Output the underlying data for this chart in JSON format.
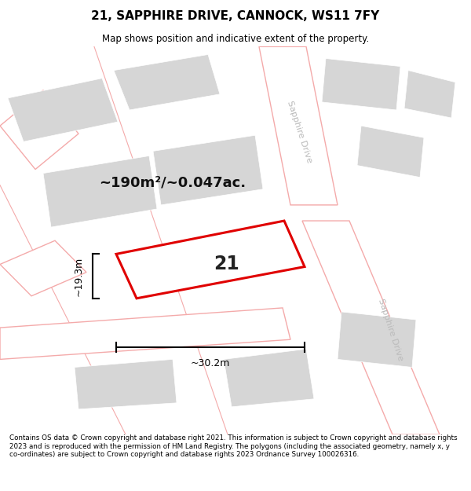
{
  "title": "21, SAPPHIRE DRIVE, CANNOCK, WS11 7FY",
  "subtitle": "Map shows position and indicative extent of the property.",
  "footer": "Contains OS data © Crown copyright and database right 2021. This information is subject to Crown copyright and database rights 2023 and is reproduced with the permission of HM Land Registry. The polygons (including the associated geometry, namely x, y co-ordinates) are subject to Crown copyright and database rights 2023 Ordnance Survey 100026316.",
  "area_label": "~190m²/~0.047ac.",
  "number_label": "21",
  "width_label": "~30.2m",
  "height_label": "~19.3m",
  "bg_color": "#ffffff",
  "map_bg": "#f2f2f2",
  "building_fill": "#d6d6d6",
  "building_edge": "#ffffff",
  "road_fill": "#ffffff",
  "road_line_color": "#f4aaaa",
  "property_color": "#e00000",
  "property_fill": "#ffffff",
  "road_label_color": "#bbbbbb",
  "title_color": "#000000",
  "subtitle_color": "#000000",
  "footer_color": "#000000",
  "dim_color": "#000000"
}
